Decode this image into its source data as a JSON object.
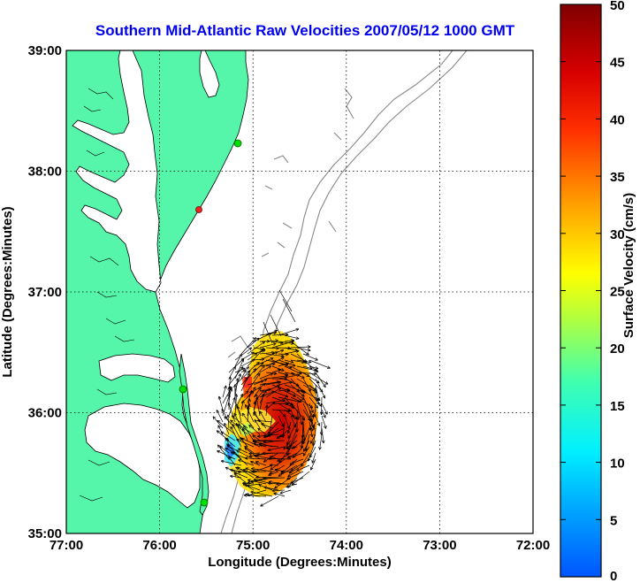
{
  "title": "Southern Mid-Atlantic Raw Velocities 2007/05/12 1000 GMT",
  "x_axis": {
    "label": "Longitude (Degrees:Minutes)",
    "ticks": [
      "77:00",
      "76:00",
      "75:00",
      "74:00",
      "73:00",
      "72:00"
    ]
  },
  "y_axis": {
    "label": "Latitude (Degrees:Minutes)",
    "ticks": [
      "39:00",
      "38:00",
      "37:00",
      "36:00",
      "35:00"
    ]
  },
  "colorbar": {
    "label": "Surface Velocity (cm/s)",
    "ticks": [
      "50",
      "45",
      "40",
      "35",
      "30",
      "25",
      "20",
      "15",
      "10",
      "5",
      "0"
    ],
    "min": 0,
    "max": 50
  },
  "colors": {
    "land": "#55f5aa",
    "title": "#0000ee",
    "station_green": "#00dd00",
    "station_red": "#ee2222",
    "isobath": "#888888"
  },
  "chart_data": {
    "type": "vector-field-map",
    "title": "Southern Mid-Atlantic Raw Velocities 2007/05/12 1000 GMT",
    "xlabel": "Longitude (Degrees:Minutes)",
    "ylabel": "Latitude (Degrees:Minutes)",
    "xlim": [
      -77.0,
      -72.0
    ],
    "ylim": [
      35.0,
      39.0
    ],
    "color_scale": {
      "label": "Surface Velocity (cm/s)",
      "min": 0,
      "max": 50,
      "colormap": "jet"
    },
    "grid": true,
    "stations": [
      {
        "lon": -75.08,
        "lat": 38.22,
        "color": "green"
      },
      {
        "lon": -75.58,
        "lat": 37.67,
        "color": "red"
      },
      {
        "lon": -75.72,
        "lat": 36.18,
        "color": "green"
      },
      {
        "lon": -75.52,
        "lat": 35.25,
        "color": "green"
      }
    ],
    "current_field_extent": {
      "lon_min": -75.35,
      "lon_max": -74.3,
      "lat_min": 35.35,
      "lat_max": 36.62
    }
  }
}
